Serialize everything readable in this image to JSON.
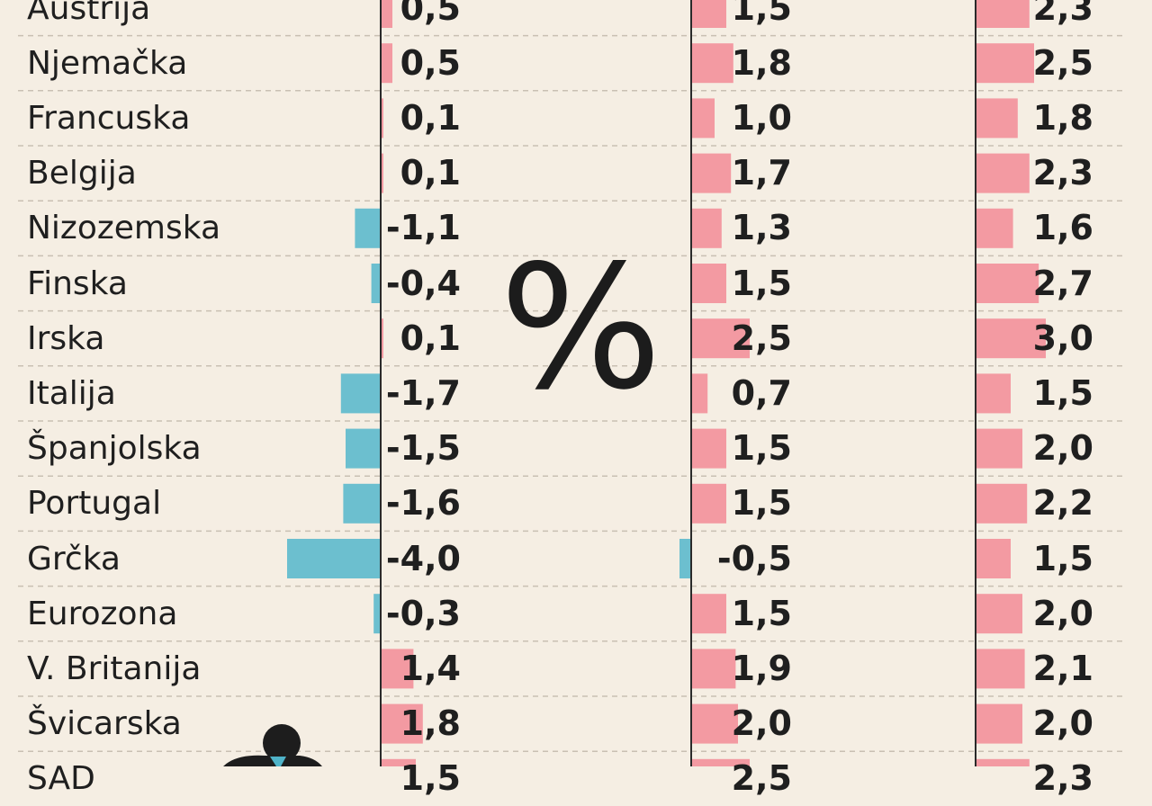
{
  "symbol": "%",
  "colors": {
    "positive": "#f39aa2",
    "negative": "#6cbfcf",
    "text": "#1f1f1f",
    "background": "#f5eee3",
    "axis": "#2a2a2a",
    "grid": "#c9c0b3"
  },
  "chart_data": {
    "type": "bar",
    "categories": [
      "Austrija",
      "Njemačka",
      "Francuska",
      "Belgija",
      "Nizozemska",
      "Finska",
      "Irska",
      "Italija",
      "Španjolska",
      "Portugal",
      "Grčka",
      "Eurozona",
      "V. Britanija",
      "Švicarska",
      "SAD"
    ],
    "series": [
      {
        "values": [
          0.5,
          0.5,
          0.1,
          0.1,
          -1.1,
          -0.4,
          0.1,
          -1.7,
          -1.5,
          -1.6,
          -4.0,
          -0.3,
          1.4,
          1.8,
          1.5
        ],
        "labels": [
          "0,5",
          "0,5",
          "0,1",
          "0,1",
          "-1,1",
          "-0,4",
          "0,1",
          "-1,7",
          "-1,5",
          "-1,6",
          "-4,0",
          "-0,3",
          "1,4",
          "1,8",
          "1,5"
        ]
      },
      {
        "values": [
          1.5,
          1.8,
          1.0,
          1.7,
          1.3,
          1.5,
          2.5,
          0.7,
          1.5,
          1.5,
          -0.5,
          1.5,
          1.9,
          2.0,
          2.5
        ],
        "labels": [
          "1,5",
          "1,8",
          "1,0",
          "1,7",
          "1,3",
          "1,5",
          "2,5",
          "0,7",
          "1,5",
          "1,5",
          "-0,5",
          "1,5",
          "1,9",
          "2,0",
          "2,5"
        ]
      },
      {
        "values": [
          2.3,
          2.5,
          1.8,
          2.3,
          1.6,
          2.7,
          3.0,
          1.5,
          2.0,
          2.2,
          1.5,
          2.0,
          2.1,
          2.0,
          2.3
        ],
        "labels": [
          "2,3",
          "2,5",
          "1,8",
          "2,3",
          "1,6",
          "2,7",
          "3,0",
          "1,5",
          "2,0",
          "2,2",
          "1,5",
          "2,0",
          "2,1",
          "2,0",
          "2,3"
        ]
      }
    ]
  }
}
